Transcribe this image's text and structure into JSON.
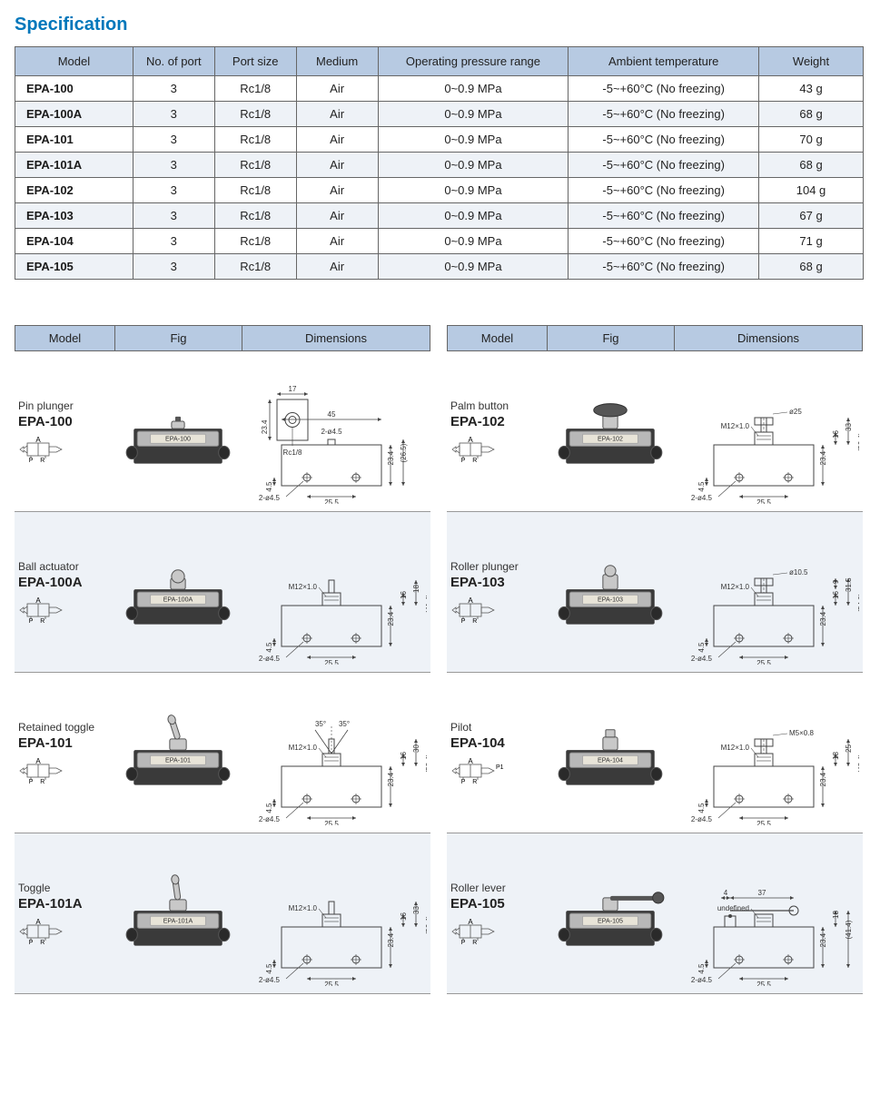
{
  "title": "Specification",
  "spec_table": {
    "columns": [
      "Model",
      "No. of port",
      "Port size",
      "Medium",
      "Operating pressure range",
      "Ambient temperature",
      "Weight"
    ],
    "rows": [
      {
        "shade": false,
        "model": "EPA-100",
        "ports": "3",
        "port_size": "Rc1/8",
        "medium": "Air",
        "pressure": "0~0.9 MPa",
        "temp": "-5~+60°C  (No freezing)",
        "weight": "43 g"
      },
      {
        "shade": true,
        "model": "EPA-100A",
        "ports": "3",
        "port_size": "Rc1/8",
        "medium": "Air",
        "pressure": "0~0.9 MPa",
        "temp": "-5~+60°C  (No freezing)",
        "weight": "68 g"
      },
      {
        "shade": false,
        "model": "EPA-101",
        "ports": "3",
        "port_size": "Rc1/8",
        "medium": "Air",
        "pressure": "0~0.9 MPa",
        "temp": "-5~+60°C  (No freezing)",
        "weight": "70 g"
      },
      {
        "shade": true,
        "model": "EPA-101A",
        "ports": "3",
        "port_size": "Rc1/8",
        "medium": "Air",
        "pressure": "0~0.9 MPa",
        "temp": "-5~+60°C  (No freezing)",
        "weight": "68 g"
      },
      {
        "shade": false,
        "model": "EPA-102",
        "ports": "3",
        "port_size": "Rc1/8",
        "medium": "Air",
        "pressure": "0~0.9 MPa",
        "temp": "-5~+60°C  (No freezing)",
        "weight": "104 g"
      },
      {
        "shade": true,
        "model": "EPA-103",
        "ports": "3",
        "port_size": "Rc1/8",
        "medium": "Air",
        "pressure": "0~0.9 MPa",
        "temp": "-5~+60°C  (No freezing)",
        "weight": "67 g"
      },
      {
        "shade": false,
        "model": "EPA-104",
        "ports": "3",
        "port_size": "Rc1/8",
        "medium": "Air",
        "pressure": "0~0.9 MPa",
        "temp": "-5~+60°C  (No freezing)",
        "weight": "71 g"
      },
      {
        "shade": true,
        "model": "EPA-105",
        "ports": "3",
        "port_size": "Rc1/8",
        "medium": "Air",
        "pressure": "0~0.9 MPa",
        "temp": "-5~+60°C  (No freezing)",
        "weight": "68 g"
      }
    ]
  },
  "dim_headers": {
    "model": "Model",
    "fig": "Fig",
    "dim": "Dimensions"
  },
  "products": {
    "left": [
      {
        "alt": false,
        "type": "Pin plunger",
        "model": "EPA-100",
        "ports": "P R",
        "port_top": "A",
        "fig": {
          "kind": "pin",
          "label": "EPA-100",
          "top_height": 8,
          "top_width": 14
        },
        "dim": {
          "kind": "top_side",
          "top_w": "17",
          "side_w": "45",
          "body_h": "23.4",
          "holes": "2-ø4.5",
          "hole_cy": "4.5",
          "hole_cx": "25.5",
          "ext_h": "(26.5)",
          "thread": "Rc1/8"
        }
      },
      {
        "alt": true,
        "type": "Ball actuator",
        "model": "EPA-100A",
        "ports": "P R",
        "port_top": "A",
        "fig": {
          "kind": "ball",
          "label": "EPA-100A",
          "top_height": 20,
          "top_width": 16
        },
        "dim": {
          "kind": "front",
          "thread": "M12×1.0",
          "body_h": "23.4",
          "hole_cy": "4.5",
          "holes": "2-ø4.5",
          "hole_cx": "25.5",
          "ext1": "16",
          "ext2": "18",
          "total": "(41.4)"
        }
      },
      {
        "alt": false,
        "type": "Retained toggle",
        "model": "EPA-101",
        "ports": "P R",
        "port_top": "A",
        "fig": {
          "kind": "toggle",
          "label": "EPA-101",
          "top_height": 34,
          "top_width": 10,
          "tilt": -18
        },
        "dim": {
          "kind": "front_angle",
          "thread": "M12×1.0",
          "angle1": "35°",
          "angle2": "35°",
          "body_h": "23.4",
          "hole_cy": "4.5",
          "holes": "2-ø4.5",
          "hole_cx": "25.5",
          "ext1": "16",
          "ext2": "30",
          "total": "(53.4)"
        }
      },
      {
        "alt": true,
        "type": "Toggle",
        "model": "EPA-101A",
        "ports": "P R",
        "port_top": "A",
        "fig": {
          "kind": "toggle",
          "label": "EPA-101A",
          "top_height": 34,
          "top_width": 10,
          "tilt": -8
        },
        "dim": {
          "kind": "front",
          "thread": "M12×1.0",
          "body_h": "23.4",
          "hole_cy": "4.5",
          "holes": "2-ø4.5",
          "hole_cx": "25.5",
          "ext1": "16",
          "ext2": "33",
          "total": "(56.4)"
        }
      }
    ],
    "right": [
      {
        "alt": false,
        "type": "Palm button",
        "model": "EPA-102",
        "ports": "P R",
        "port_top": "A",
        "fig": {
          "kind": "palm",
          "label": "EPA-102",
          "top_height": 28,
          "top_width": 36
        },
        "dim": {
          "kind": "front_cap",
          "thread": "M12×1.0",
          "cap_dia": "ø25",
          "body_h": "23.4",
          "hole_cy": "4.5",
          "holes": "2-ø4.5",
          "hole_cx": "25.5",
          "ext1": "16",
          "ext2": "33",
          "total": "(56.4)"
        }
      },
      {
        "alt": true,
        "type": "Roller plunger",
        "model": "EPA-103",
        "ports": "P R",
        "port_top": "A",
        "fig": {
          "kind": "roller",
          "label": "EPA-103",
          "top_height": 26,
          "top_width": 16
        },
        "dim": {
          "kind": "front_cap",
          "thread": "M12×1.0",
          "cap_dia": "ø10.5",
          "body_h": "23.4",
          "hole_cy": "4.5",
          "holes": "2-ø4.5",
          "hole_cx": "25.5",
          "ext1": "16",
          "ext2": "31.5",
          "ext3": "9",
          "total": "(54.9)"
        }
      },
      {
        "alt": false,
        "type": "Pilot",
        "model": "EPA-104",
        "ports": "P R",
        "port_top": "A",
        "port_extra": "P1",
        "fig": {
          "kind": "pilot",
          "label": "EPA-104",
          "top_height": 22,
          "top_width": 16
        },
        "dim": {
          "kind": "front_cap",
          "thread": "M12×1.0",
          "cap_dia": "M5×0.8",
          "body_h": "23.4",
          "hole_cy": "4.5",
          "holes": "2-ø4.5",
          "hole_cx": "25.5",
          "ext1": "18",
          "ext2": "25",
          "total": "(48.4)"
        }
      },
      {
        "alt": true,
        "type": "Roller lever",
        "model": "EPA-105",
        "ports": "P R",
        "port_top": "A",
        "fig": {
          "kind": "lever",
          "label": "EPA-105",
          "top_height": 16,
          "top_width": 52
        },
        "dim": {
          "kind": "front_lever",
          "lever_off": "4",
          "lever_len": "37",
          "body_h": "23.4",
          "hole_cy": "4.5",
          "holes": "2-ø4.5",
          "hole_cx": "25.5",
          "lever_h": "18",
          "total": "(41.4)"
        }
      }
    ]
  },
  "style": {
    "header_bg": "#b7cae2",
    "shade_bg": "#eef2f7",
    "border": "#666666",
    "body_fill": "#3a3a3a",
    "plate_fill": "#b8b8b8",
    "metal_fill": "#c8c8c8",
    "label_bg": "#e8e4d8",
    "line": "#444444"
  }
}
